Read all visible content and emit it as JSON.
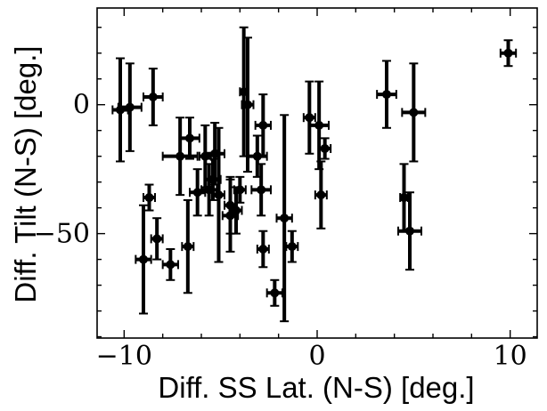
{
  "chart_data": {
    "type": "scatter",
    "xlabel": "Diff. SS Lat. (N-S) [deg.]",
    "ylabel": "Diff. Tilt (N-S) [deg.]",
    "xlim": [
      -11.4,
      11.4
    ],
    "ylim": [
      -90.5,
      37.5
    ],
    "x_ticks": [
      -10,
      0,
      10
    ],
    "x_tick_labels": [
      "−10",
      "0",
      "10"
    ],
    "y_ticks": [
      -50,
      0
    ],
    "y_tick_labels": [
      "−50",
      "0"
    ],
    "grid": false,
    "series": [
      {
        "marker": "circle",
        "color": "#000000",
        "points": [
          {
            "x": -10.2,
            "y": -2,
            "xerr": 0.4,
            "yerr": 20
          },
          {
            "x": -9.7,
            "y": -1,
            "xerr": 0.6,
            "yerr": 17
          },
          {
            "x": -8.5,
            "y": 3,
            "xerr": 0.5,
            "yerr": 11
          },
          {
            "x": -8.7,
            "y": -36,
            "xerr": 0.3,
            "yerr": 5
          },
          {
            "x": -8.3,
            "y": -52,
            "xerr": 0.3,
            "yerr": 8
          },
          {
            "x": -9.0,
            "y": -60,
            "xerr": 0.4,
            "yerr": 21
          },
          {
            "x": -7.6,
            "y": -62,
            "xerr": 0.4,
            "yerr": 6
          },
          {
            "x": -7.1,
            "y": -20,
            "xerr": 0.9,
            "yerr": 15
          },
          {
            "x": -6.6,
            "y": -13,
            "xerr": 0.5,
            "yerr": 8
          },
          {
            "x": -6.2,
            "y": -34,
            "xerr": 0.4,
            "yerr": 9
          },
          {
            "x": -6.7,
            "y": -55,
            "xerr": 0.3,
            "yerr": 18
          },
          {
            "x": -5.8,
            "y": -20,
            "xerr": 0.3,
            "yerr": 12
          },
          {
            "x": -5.6,
            "y": -33,
            "xerr": 0.4,
            "yerr": 10
          },
          {
            "x": -5.3,
            "y": -19,
            "xerr": 0.5,
            "yerr": 12
          },
          {
            "x": -5.4,
            "y": -29,
            "xerr": 0.4,
            "yerr": 8
          },
          {
            "x": -5.1,
            "y": -35,
            "xerr": 0.3,
            "yerr": 26
          },
          {
            "x": -4.5,
            "y": -39,
            "xerr": 0.3,
            "yerr": 11
          },
          {
            "x": -4.5,
            "y": -43,
            "xerr": 0.4,
            "yerr": 14
          },
          {
            "x": -4.2,
            "y": -41,
            "xerr": 0.3,
            "yerr": 9
          },
          {
            "x": -4.0,
            "y": -33,
            "xerr": 0.3,
            "yerr": 5
          },
          {
            "x": -3.8,
            "y": 5,
            "xerr": 0.2,
            "yerr": 25
          },
          {
            "x": -3.6,
            "y": 0,
            "xerr": 0.3,
            "yerr": 26
          },
          {
            "x": -3.1,
            "y": -20,
            "xerr": 0.5,
            "yerr": 8
          },
          {
            "x": -2.8,
            "y": -8,
            "xerr": 0.4,
            "yerr": 12
          },
          {
            "x": -2.9,
            "y": -33,
            "xerr": 0.5,
            "yerr": 10
          },
          {
            "x": -2.8,
            "y": -56,
            "xerr": 0.3,
            "yerr": 7
          },
          {
            "x": -2.2,
            "y": -73,
            "xerr": 0.4,
            "yerr": 5
          },
          {
            "x": -1.7,
            "y": -44,
            "xerr": 0.4,
            "yerr": 40
          },
          {
            "x": -1.3,
            "y": -55,
            "xerr": 0.3,
            "yerr": 6
          },
          {
            "x": -0.4,
            "y": -5,
            "xerr": 0.3,
            "yerr": 14
          },
          {
            "x": 0.1,
            "y": -8,
            "xerr": 0.5,
            "yerr": 17
          },
          {
            "x": 0.2,
            "y": -35,
            "xerr": 0.3,
            "yerr": 13
          },
          {
            "x": 0.4,
            "y": -17,
            "xerr": 0.3,
            "yerr": 4
          },
          {
            "x": 3.6,
            "y": 4,
            "xerr": 0.5,
            "yerr": 13
          },
          {
            "x": 4.5,
            "y": -36,
            "xerr": 0.2,
            "yerr": 13
          },
          {
            "x": 4.8,
            "y": -49,
            "xerr": 0.6,
            "yerr": 15
          },
          {
            "x": 5.0,
            "y": -3,
            "xerr": 0.6,
            "yerr": 19
          },
          {
            "x": 9.9,
            "y": 20,
            "xerr": 0.4,
            "yerr": 5
          }
        ]
      }
    ]
  }
}
